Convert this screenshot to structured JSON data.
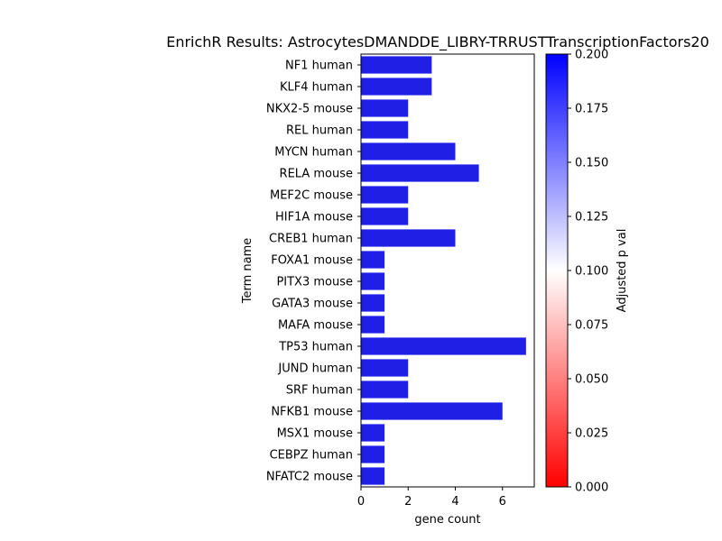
{
  "chart_data": {
    "type": "bar",
    "orientation": "horizontal",
    "title": "EnrichR Results: AstrocytesDMANDDE_LIBRY-TRRUSTTranscriptionFactors20",
    "xlabel": "gene count",
    "ylabel": "Term name",
    "xlim": [
      0,
      7.35
    ],
    "xticks": [
      0,
      2,
      4,
      6
    ],
    "grid": false,
    "categories": [
      "NF1 human",
      "KLF4 human",
      "NKX2-5 mouse",
      "REL human",
      "MYCN human",
      "RELA mouse",
      "MEF2C mouse",
      "HIF1A mouse",
      "CREB1 human",
      "FOXA1 mouse",
      "PITX3 mouse",
      "GATA3 mouse",
      "MAFA mouse",
      "TP53 human",
      "JUND human",
      "SRF human",
      "NFKB1 mouse",
      "MSX1 mouse",
      "CEBPZ human",
      "NFATC2 mouse"
    ],
    "values": [
      3,
      3,
      2,
      2,
      4,
      5,
      2,
      2,
      4,
      1,
      1,
      1,
      1,
      7,
      2,
      2,
      6,
      1,
      1,
      1
    ],
    "bar_color": "#1f1fe6",
    "colorbar": {
      "label": "Adjusted p val",
      "range": [
        0.0,
        0.2
      ],
      "ticks": [
        "0.000",
        "0.025",
        "0.050",
        "0.075",
        "0.100",
        "0.125",
        "0.150",
        "0.175",
        "0.200"
      ],
      "colors": [
        "#ff0000",
        "#ffffff",
        "#0000ff"
      ]
    }
  }
}
